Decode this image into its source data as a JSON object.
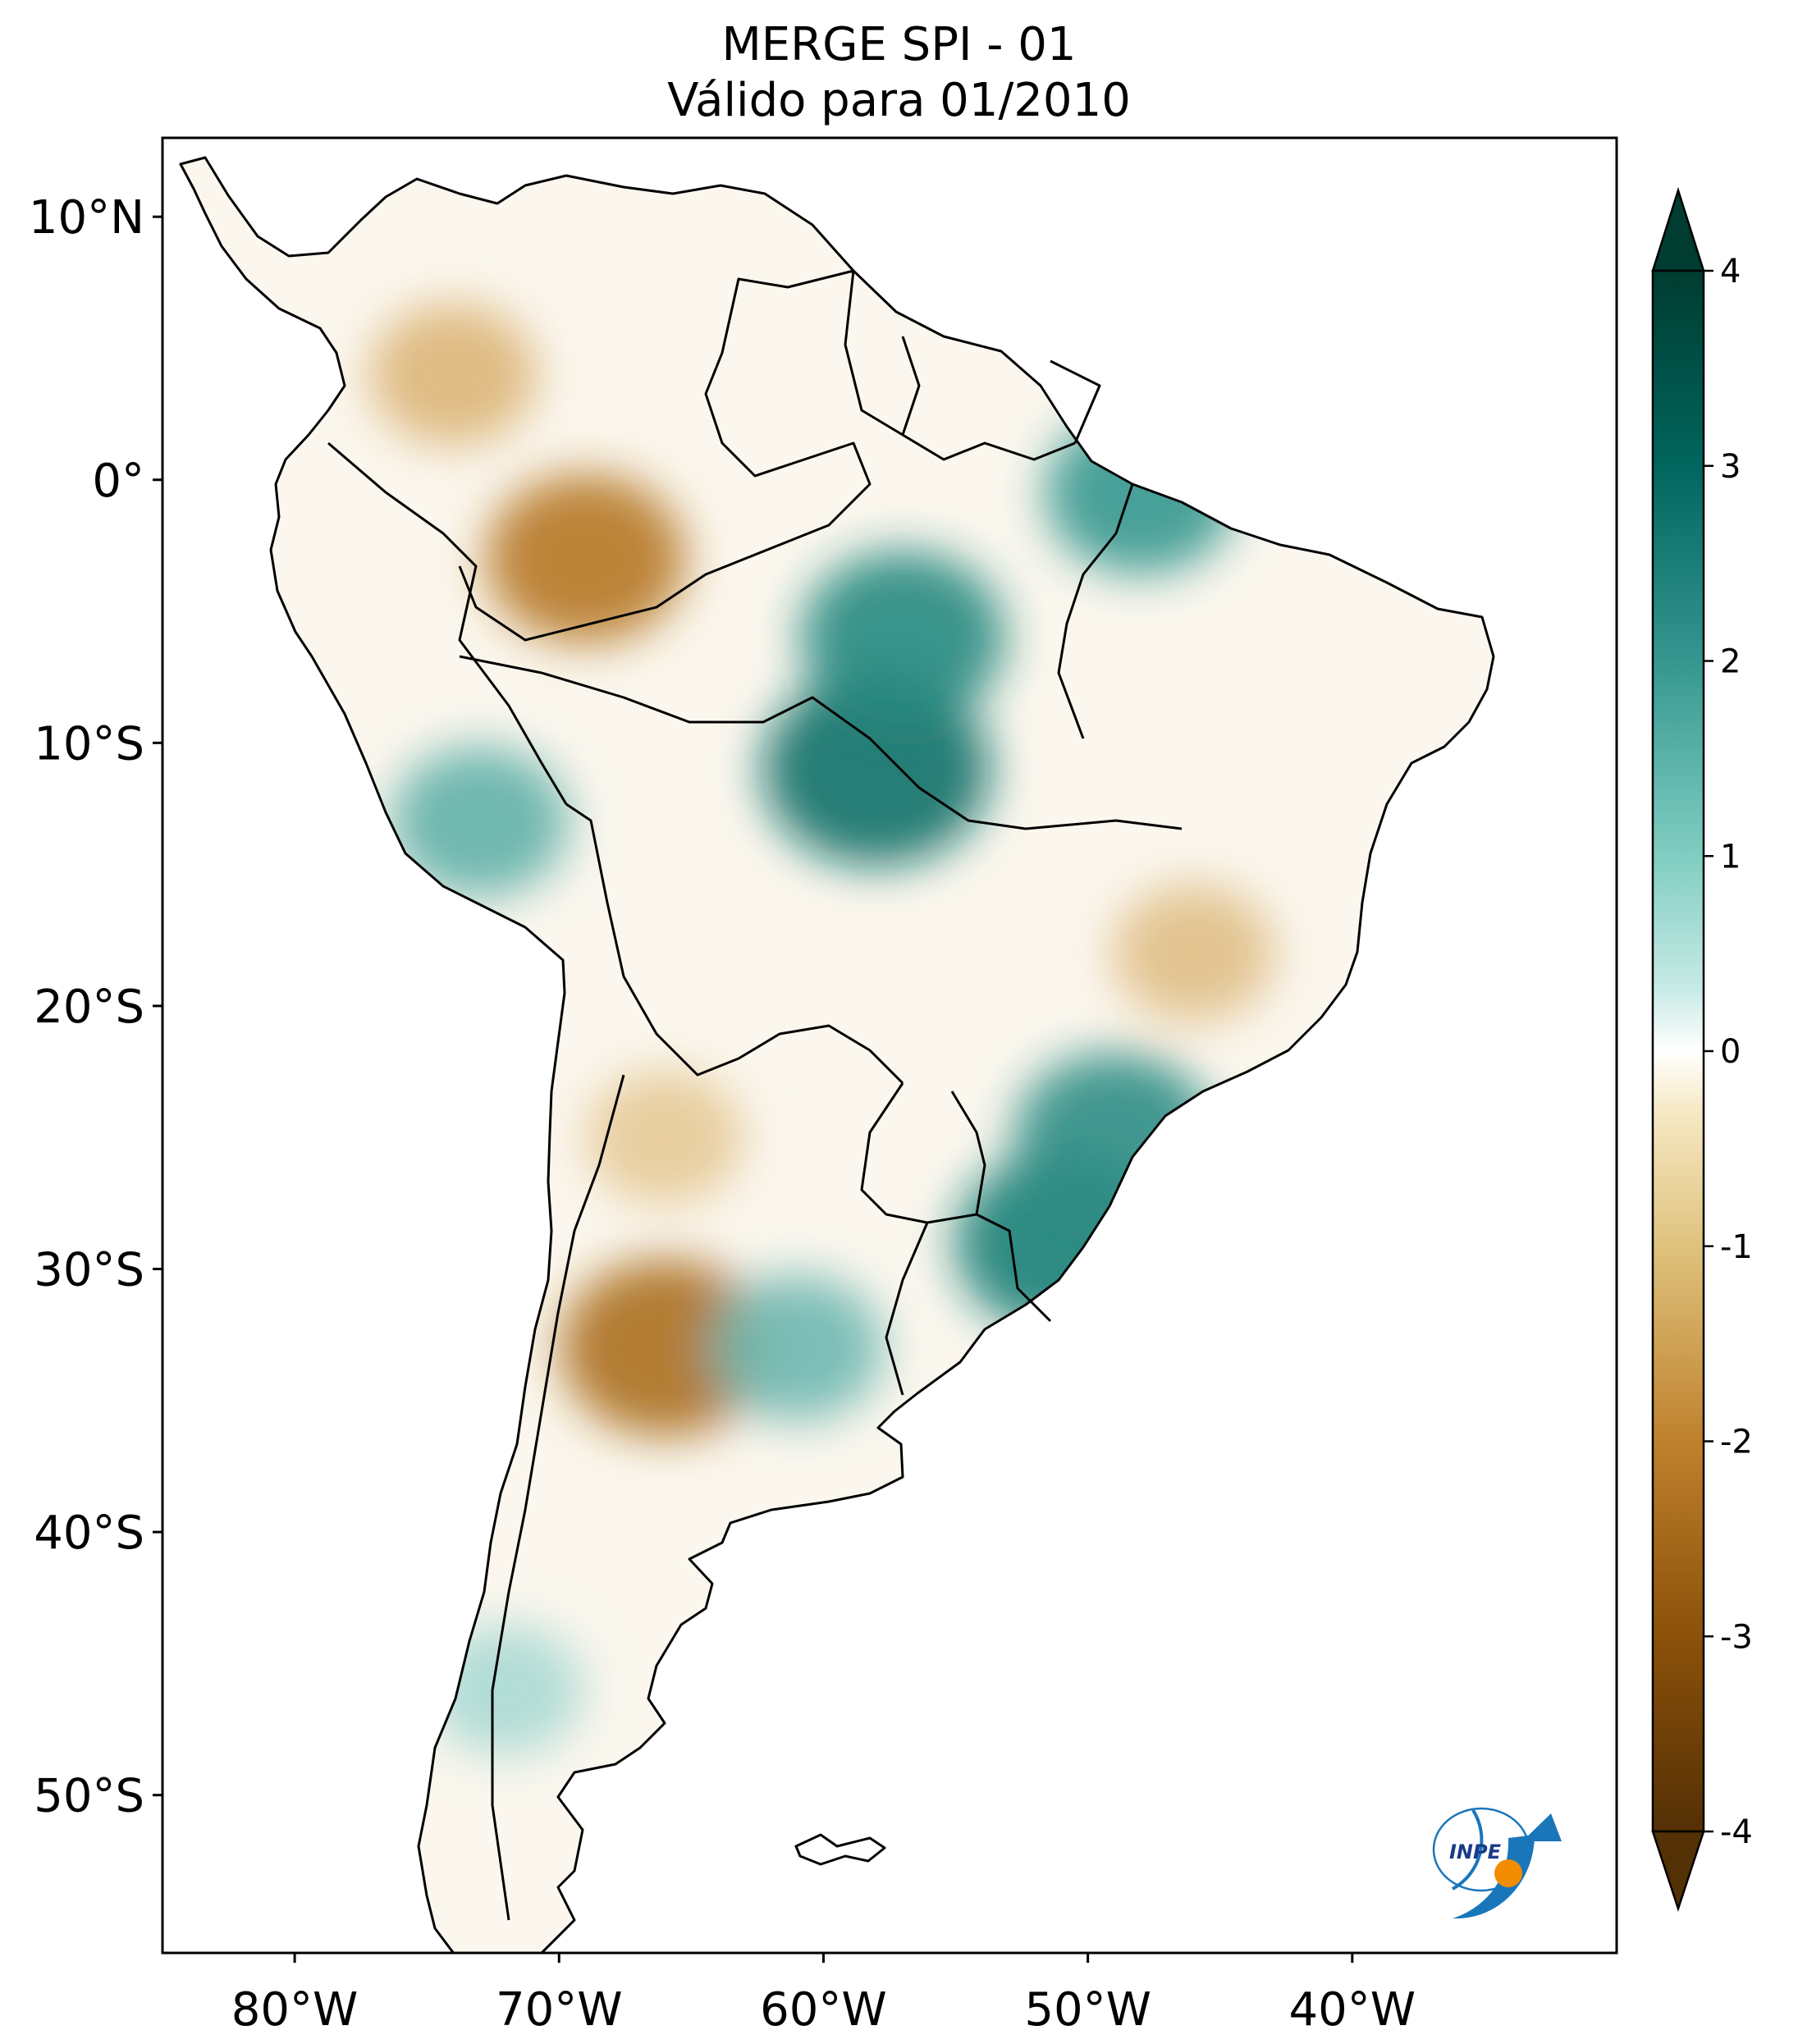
{
  "title": {
    "line1": "MERGE   SPI - 01",
    "line2": "Válido para 01/2010"
  },
  "map": {
    "projection": "plate-carree",
    "lon_range": [
      -85,
      -30
    ],
    "lat_range": [
      -56,
      13
    ],
    "lon_ticks": [
      {
        "value": -80,
        "label": "80°W"
      },
      {
        "value": -70,
        "label": "70°W"
      },
      {
        "value": -60,
        "label": "60°W"
      },
      {
        "value": -50,
        "label": "50°W"
      },
      {
        "value": -40,
        "label": "40°W"
      }
    ],
    "lat_ticks": [
      {
        "value": 10,
        "label": "10°N"
      },
      {
        "value": 0,
        "label": "0°"
      },
      {
        "value": -10,
        "label": "10°S"
      },
      {
        "value": -20,
        "label": "20°S"
      },
      {
        "value": -30,
        "label": "30°S"
      },
      {
        "value": -40,
        "label": "40°S"
      },
      {
        "value": -50,
        "label": "50°S"
      }
    ],
    "field": "SPI-01",
    "colormap": "BrBG",
    "colors": {
      "dry_extreme": "#543005",
      "dry": "#c89b4c",
      "neutral": "#ffffff",
      "wet": "#6ac4b6",
      "wet_extreme": "#003c30"
    },
    "anomaly_regions": [
      {
        "lon": -74,
        "lat": 4,
        "value": -1.5
      },
      {
        "lon": -69,
        "lat": -3,
        "value": -2.2
      },
      {
        "lon": -66,
        "lat": -33,
        "value": -2.4
      },
      {
        "lon": -46,
        "lat": -18,
        "value": -1.4
      },
      {
        "lon": -66,
        "lat": -25,
        "value": -1.3
      },
      {
        "lon": -58,
        "lat": -11,
        "value": 2.8
      },
      {
        "lon": -57,
        "lat": -6,
        "value": 2.3
      },
      {
        "lon": -48,
        "lat": -0.5,
        "value": 2.0
      },
      {
        "lon": -51,
        "lat": -29,
        "value": 2.5
      },
      {
        "lon": -49,
        "lat": -25,
        "value": 2.2
      },
      {
        "lon": -73,
        "lat": -13,
        "value": 1.7
      },
      {
        "lon": -61,
        "lat": -33,
        "value": 1.6
      },
      {
        "lon": -72,
        "lat": -46,
        "value": 1.2
      }
    ]
  },
  "colorbar": {
    "min": -4,
    "max": 4,
    "ticks": [
      {
        "value": 4,
        "label": "4"
      },
      {
        "value": 3,
        "label": "3"
      },
      {
        "value": 2,
        "label": "2"
      },
      {
        "value": 1,
        "label": "1"
      },
      {
        "value": 0,
        "label": "0"
      },
      {
        "value": -1,
        "label": "-1"
      },
      {
        "value": -2,
        "label": "-2"
      },
      {
        "value": -3,
        "label": "-3"
      },
      {
        "value": -4,
        "label": "-4"
      }
    ],
    "extend": "both"
  },
  "logo": {
    "text": "INPE",
    "colors": {
      "blue": "#1a76bb",
      "orange": "#f28c00"
    }
  }
}
